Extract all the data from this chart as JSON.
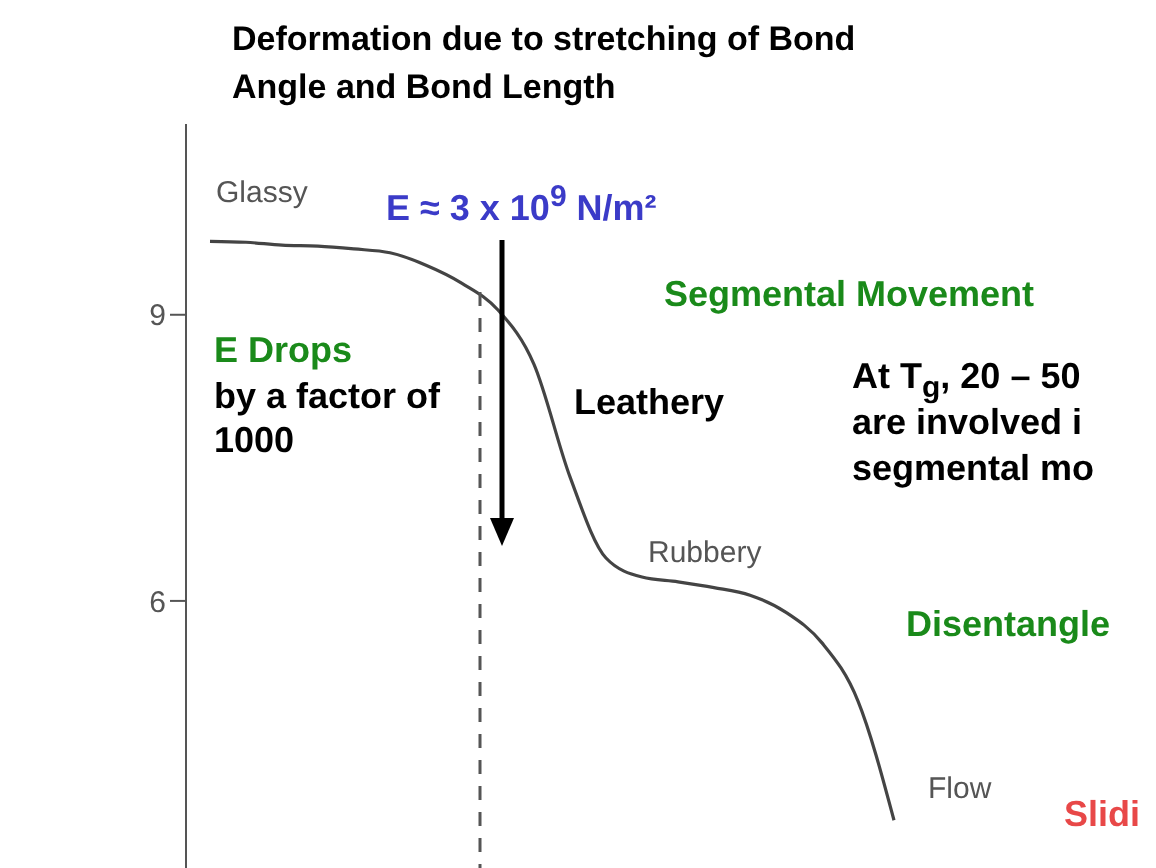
{
  "chart_data": {
    "type": "line",
    "title": "Deformation due to stretching of Bond Angle and Bond Length",
    "categories": [
      null,
      null,
      null,
      null,
      null,
      null,
      null,
      null,
      null,
      null,
      null,
      null,
      null,
      null,
      null,
      null,
      null,
      null,
      null,
      null
    ],
    "series": [
      {
        "color": "#444444",
        "values": [
          9.77,
          9.76,
          9.73,
          9.72,
          9.69,
          9.65,
          9.52,
          9.33,
          9.05,
          8.48,
          7.3,
          6.45,
          6.25,
          6.2,
          6.14,
          6.06,
          5.88,
          5.56,
          4.95,
          3.7
        ]
      }
    ],
    "ylim": [
      3.2,
      11
    ],
    "yticks": [
      6,
      9
    ],
    "tick_labels": "y",
    "grid": false,
    "legend": false,
    "marker": "none",
    "line_style": "solid",
    "annotations": [
      "Glassy",
      "Rubbery",
      "Flow",
      "E ≈ 3 x 10$^{9}$ N/m²",
      "Segmental Movement",
      "E Drops",
      "by a factor of 1000",
      "Leathery",
      "At T$_{g}$, 20 – 50",
      "are involved i",
      "segmental mo",
      "Disentangle",
      "Slidi"
    ]
  }
}
